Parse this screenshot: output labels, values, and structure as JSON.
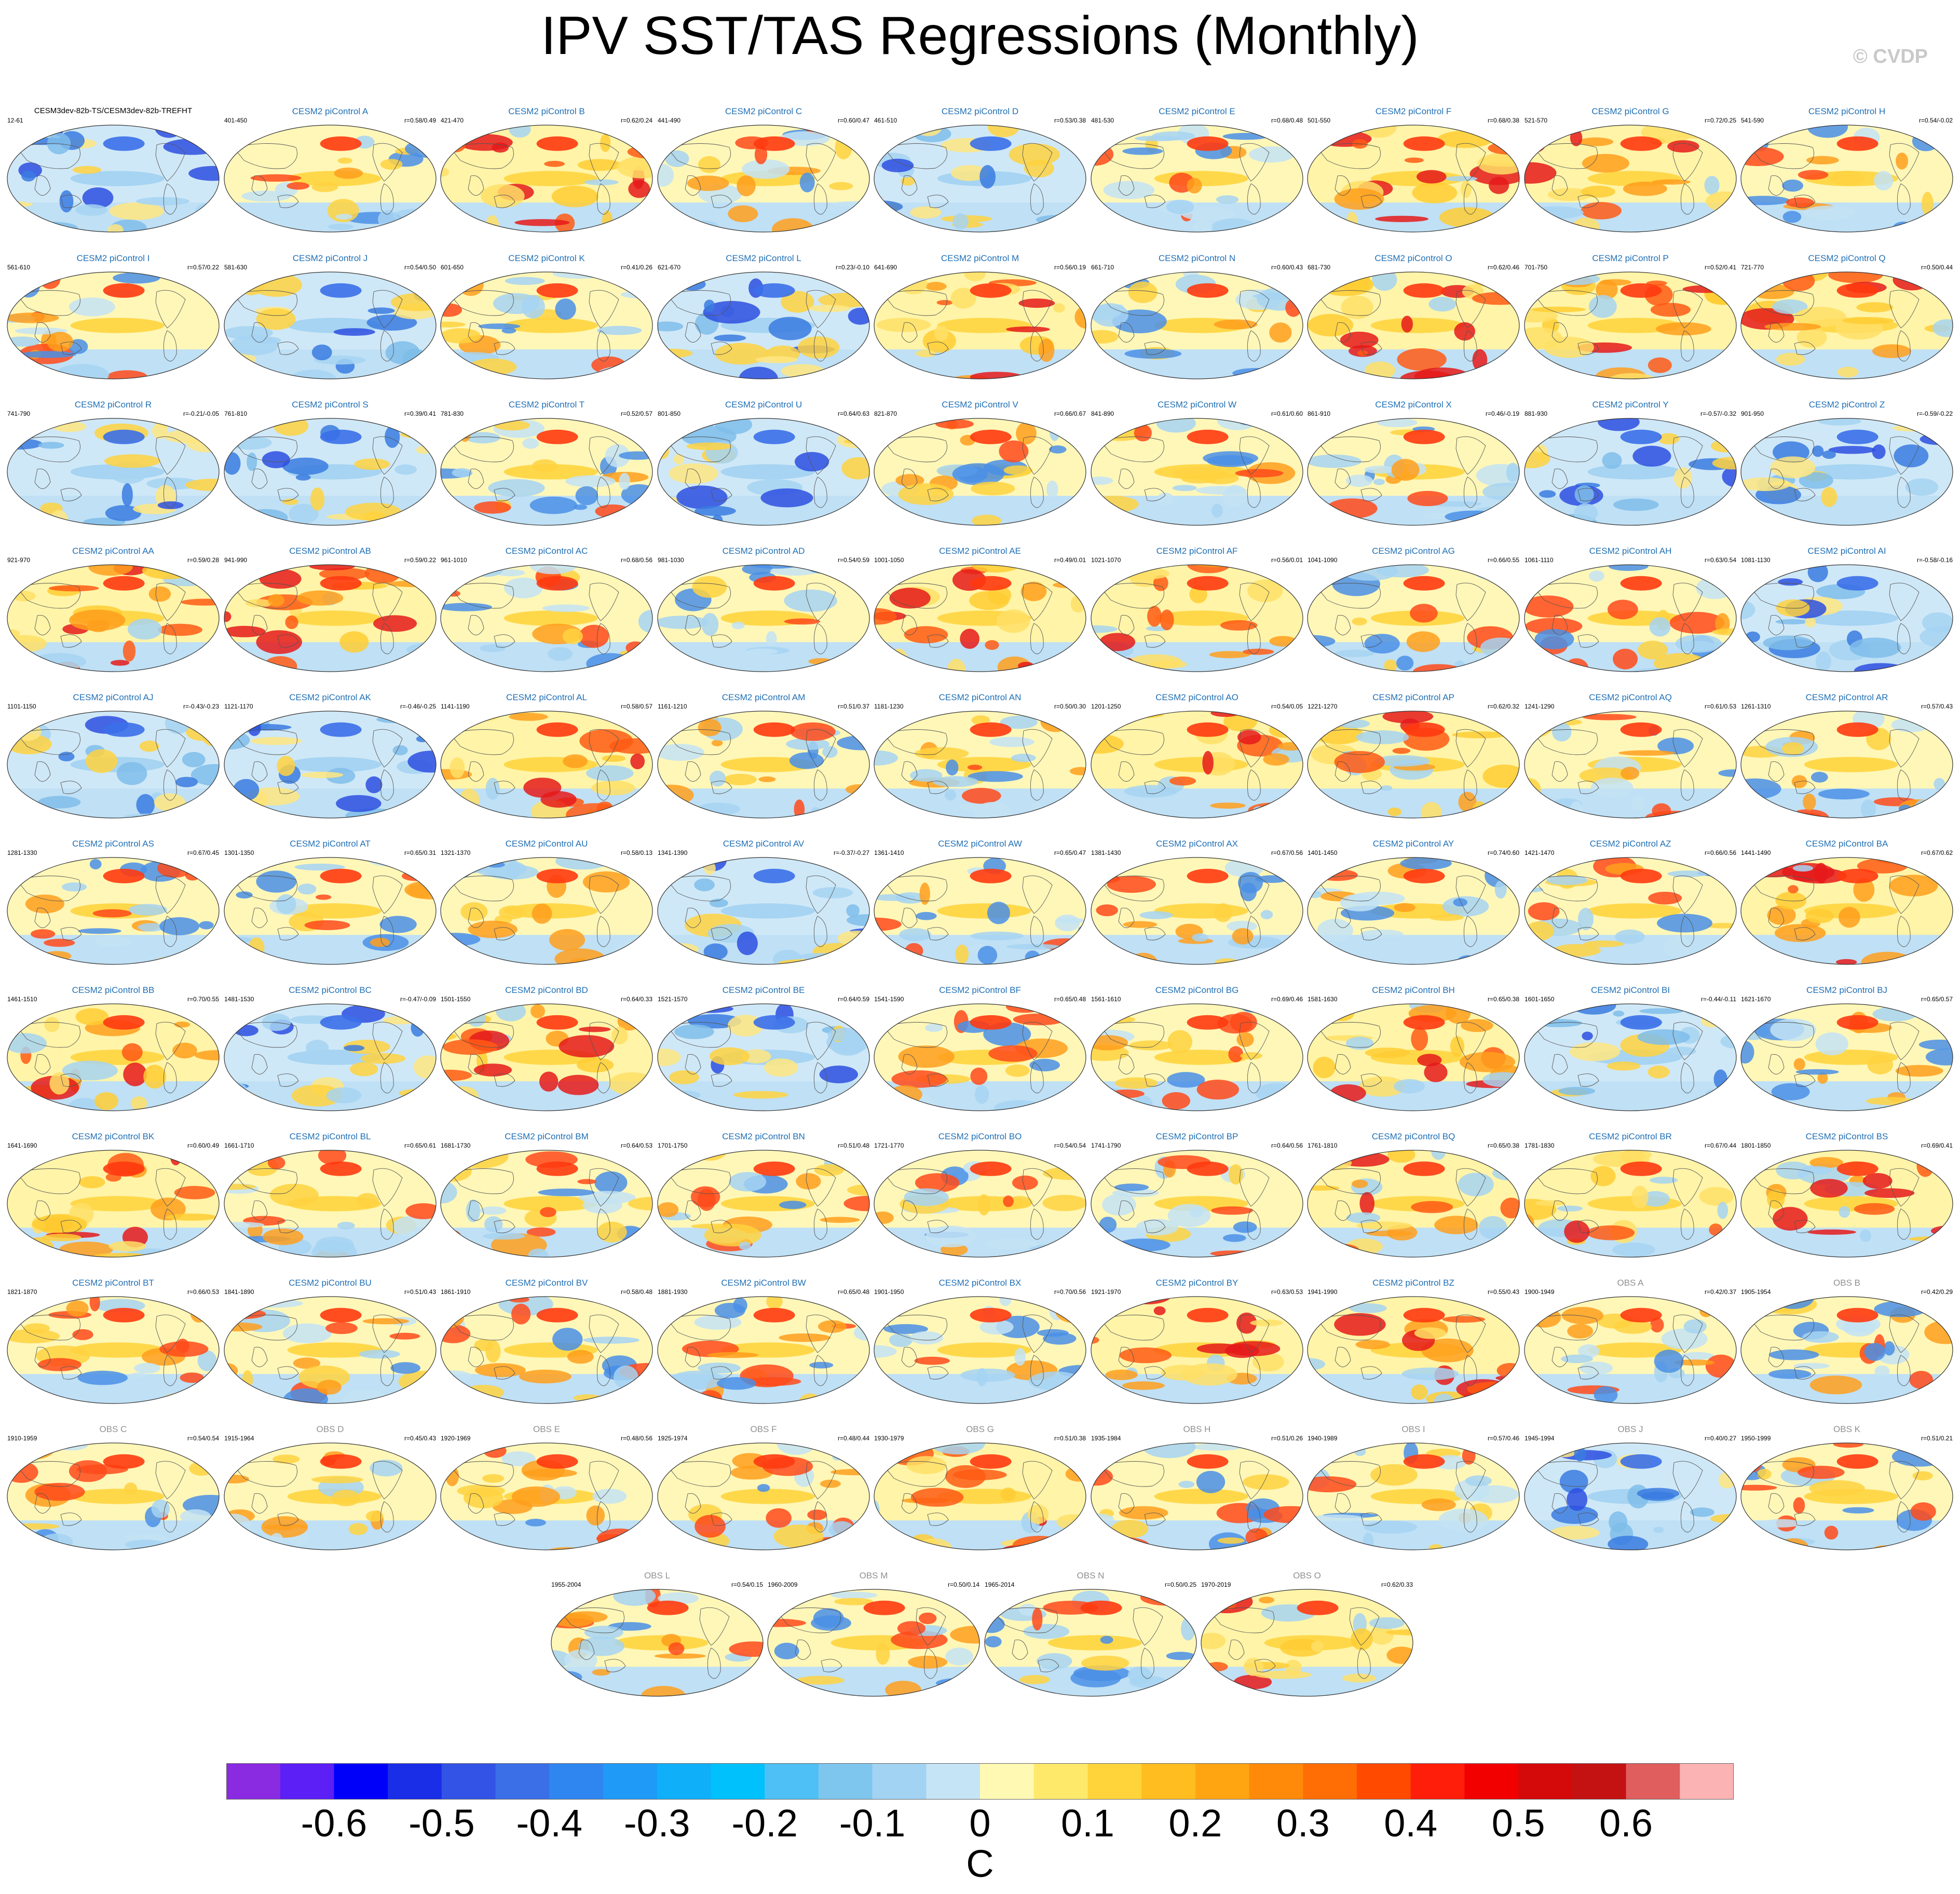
{
  "title": "IPV SST/TAS Regressions (Monthly)",
  "watermark": "© CVDP",
  "first_panel": {
    "subtitle": "CESM3dev-82b-TS/CESM3dev-82b-TREFHT",
    "period": "12-61",
    "corr": "",
    "palette": "cold"
  },
  "model_panels": [
    {
      "t": "CESM2 piControl A",
      "p": "401-450",
      "r": "r=0.58/0.49",
      "w": "mixed"
    },
    {
      "t": "CESM2 piControl B",
      "p": "421-470",
      "r": "r=0.62/0.24",
      "w": "warm"
    },
    {
      "t": "CESM2 piControl C",
      "p": "441-490",
      "r": "r=0.60/0.47",
      "w": "mixed"
    },
    {
      "t": "CESM2 piControl D",
      "p": "461-510",
      "r": "r=0.53/0.38",
      "w": "cold"
    },
    {
      "t": "CESM2 piControl E",
      "p": "481-530",
      "r": "r=0.68/0.48",
      "w": "mixed"
    },
    {
      "t": "CESM2 piControl F",
      "p": "501-550",
      "r": "r=0.68/0.38",
      "w": "warm"
    },
    {
      "t": "CESM2 piControl G",
      "p": "521-570",
      "r": "r=0.72/0.25",
      "w": "warm"
    },
    {
      "t": "CESM2 piControl H",
      "p": "541-590",
      "r": "r=0.54/-0.02",
      "w": "mixed"
    },
    {
      "t": "CESM2 piControl I",
      "p": "561-610",
      "r": "r=0.57/0.22",
      "w": "mixed"
    },
    {
      "t": "CESM2 piControl J",
      "p": "581-630",
      "r": "r=0.54/0.50",
      "w": "cold"
    },
    {
      "t": "CESM2 piControl K",
      "p": "601-650",
      "r": "r=0.41/0.26",
      "w": "mixed"
    },
    {
      "t": "CESM2 piControl L",
      "p": "621-670",
      "r": "r=0.23/-0.10",
      "w": "cold"
    },
    {
      "t": "CESM2 piControl M",
      "p": "641-690",
      "r": "r=0.56/0.19",
      "w": "warm"
    },
    {
      "t": "CESM2 piControl N",
      "p": "661-710",
      "r": "r=0.60/0.43",
      "w": "mixed"
    },
    {
      "t": "CESM2 piControl O",
      "p": "681-730",
      "r": "r=0.62/0.46",
      "w": "warm"
    },
    {
      "t": "CESM2 piControl P",
      "p": "701-750",
      "r": "r=0.52/0.41",
      "w": "warm"
    },
    {
      "t": "CESM2 piControl Q",
      "p": "721-770",
      "r": "r=0.50/0.44",
      "w": "warm"
    },
    {
      "t": "CESM2 piControl R",
      "p": "741-790",
      "r": "r=-0.21/-0.05",
      "w": "cold"
    },
    {
      "t": "CESM2 piControl S",
      "p": "761-810",
      "r": "r=0.39/0.41",
      "w": "cold"
    },
    {
      "t": "CESM2 piControl T",
      "p": "781-830",
      "r": "r=0.52/0.57",
      "w": "mixed"
    },
    {
      "t": "CESM2 piControl U",
      "p": "801-850",
      "r": "r=0.64/0.63",
      "w": "cold"
    },
    {
      "t": "CESM2 piControl V",
      "p": "821-870",
      "r": "r=0.66/0.67",
      "w": "mixed"
    },
    {
      "t": "CESM2 piControl W",
      "p": "841-890",
      "r": "r=0.61/0.60",
      "w": "mixed"
    },
    {
      "t": "CESM2 piControl X",
      "p": "861-910",
      "r": "r=0.46/-0.19",
      "w": "mixed"
    },
    {
      "t": "CESM2 piControl Y",
      "p": "881-930",
      "r": "r=-0.57/-0.32",
      "w": "cold"
    },
    {
      "t": "CESM2 piControl Z",
      "p": "901-950",
      "r": "r=-0.59/-0.22",
      "w": "cold"
    },
    {
      "t": "CESM2 piControl AA",
      "p": "921-970",
      "r": "r=0.59/0.28",
      "w": "warm"
    },
    {
      "t": "CESM2 piControl AB",
      "p": "941-990",
      "r": "r=0.59/0.22",
      "w": "warm"
    },
    {
      "t": "CESM2 piControl AC",
      "p": "961-1010",
      "r": "r=0.68/0.56",
      "w": "mixed"
    },
    {
      "t": "CESM2 piControl AD",
      "p": "981-1030",
      "r": "r=0.54/0.59",
      "w": "mixed"
    },
    {
      "t": "CESM2 piControl AE",
      "p": "1001-1050",
      "r": "r=0.49/0.01",
      "w": "warm"
    },
    {
      "t": "CESM2 piControl AF",
      "p": "1021-1070",
      "r": "r=0.56/0.01",
      "w": "warm"
    },
    {
      "t": "CESM2 piControl AG",
      "p": "1041-1090",
      "r": "r=0.66/0.55",
      "w": "mixed"
    },
    {
      "t": "CESM2 piControl AH",
      "p": "1061-1110",
      "r": "r=0.63/0.54",
      "w": "mixed"
    },
    {
      "t": "CESM2 piControl AI",
      "p": "1081-1130",
      "r": "r=-0.58/-0.16",
      "w": "cold"
    },
    {
      "t": "CESM2 piControl AJ",
      "p": "1101-1150",
      "r": "r=-0.43/-0.23",
      "w": "cold"
    },
    {
      "t": "CESM2 piControl AK",
      "p": "1121-1170",
      "r": "r=-0.46/-0.25",
      "w": "cold"
    },
    {
      "t": "CESM2 piControl AL",
      "p": "1141-1190",
      "r": "r=0.58/0.57",
      "w": "warm"
    },
    {
      "t": "CESM2 piControl AM",
      "p": "1161-1210",
      "r": "r=0.51/0.37",
      "w": "mixed"
    },
    {
      "t": "CESM2 piControl AN",
      "p": "1181-1230",
      "r": "r=0.50/0.30",
      "w": "mixed"
    },
    {
      "t": "CESM2 piControl AO",
      "p": "1201-1250",
      "r": "r=0.54/0.05",
      "w": "warm"
    },
    {
      "t": "CESM2 piControl AP",
      "p": "1221-1270",
      "r": "r=0.62/0.32",
      "w": "warm"
    },
    {
      "t": "CESM2 piControl AQ",
      "p": "1241-1290",
      "r": "r=0.61/0.53",
      "w": "mixed"
    },
    {
      "t": "CESM2 piControl AR",
      "p": "1261-1310",
      "r": "r=0.57/0.43",
      "w": "mixed"
    },
    {
      "t": "CESM2 piControl AS",
      "p": "1281-1330",
      "r": "r=0.67/0.45",
      "w": "mixed"
    },
    {
      "t": "CESM2 piControl AT",
      "p": "1301-1350",
      "r": "r=0.65/0.31",
      "w": "mixed"
    },
    {
      "t": "CESM2 piControl AU",
      "p": "1321-1370",
      "r": "r=0.58/0.13",
      "w": "mixed"
    },
    {
      "t": "CESM2 piControl AV",
      "p": "1341-1390",
      "r": "r=-0.37/-0.27",
      "w": "cold"
    },
    {
      "t": "CESM2 piControl AW",
      "p": "1361-1410",
      "r": "r=0.65/0.47",
      "w": "mixed"
    },
    {
      "t": "CESM2 piControl AX",
      "p": "1381-1430",
      "r": "r=0.67/0.56",
      "w": "mixed"
    },
    {
      "t": "CESM2 piControl AY",
      "p": "1401-1450",
      "r": "r=0.74/0.60",
      "w": "mixed"
    },
    {
      "t": "CESM2 piControl AZ",
      "p": "1421-1470",
      "r": "r=0.66/0.56",
      "w": "mixed"
    },
    {
      "t": "CESM2 piControl BA",
      "p": "1441-1490",
      "r": "r=0.67/0.62",
      "w": "warm"
    },
    {
      "t": "CESM2 piControl BB",
      "p": "1461-1510",
      "r": "r=0.70/0.55",
      "w": "warm"
    },
    {
      "t": "CESM2 piControl BC",
      "p": "1481-1530",
      "r": "r=-0.47/-0.09",
      "w": "cold"
    },
    {
      "t": "CESM2 piControl BD",
      "p": "1501-1550",
      "r": "r=0.64/0.33",
      "w": "warm"
    },
    {
      "t": "CESM2 piControl BE",
      "p": "1521-1570",
      "r": "r=0.64/0.59",
      "w": "cold"
    },
    {
      "t": "CESM2 piControl BF",
      "p": "1541-1590",
      "r": "r=0.65/0.48",
      "w": "mixed"
    },
    {
      "t": "CESM2 piControl BG",
      "p": "1561-1610",
      "r": "r=0.69/0.46",
      "w": "mixed"
    },
    {
      "t": "CESM2 piControl BH",
      "p": "1581-1630",
      "r": "r=0.65/0.38",
      "w": "warm"
    },
    {
      "t": "CESM2 piControl BI",
      "p": "1601-1650",
      "r": "r=-0.44/-0.11",
      "w": "cold"
    },
    {
      "t": "CESM2 piControl BJ",
      "p": "1621-1670",
      "r": "r=0.65/0.57",
      "w": "mixed"
    },
    {
      "t": "CESM2 piControl BK",
      "p": "1641-1690",
      "r": "r=0.60/0.49",
      "w": "warm"
    },
    {
      "t": "CESM2 piControl BL",
      "p": "1661-1710",
      "r": "r=0.65/0.61",
      "w": "mixed"
    },
    {
      "t": "CESM2 piControl BM",
      "p": "1681-1730",
      "r": "r=0.64/0.53",
      "w": "mixed"
    },
    {
      "t": "CESM2 piControl BN",
      "p": "1701-1750",
      "r": "r=0.51/0.48",
      "w": "mixed"
    },
    {
      "t": "CESM2 piControl BO",
      "p": "1721-1770",
      "r": "r=0.54/0.54",
      "w": "mixed"
    },
    {
      "t": "CESM2 piControl BP",
      "p": "1741-1790",
      "r": "r=0.64/0.56",
      "w": "mixed"
    },
    {
      "t": "CESM2 piControl BQ",
      "p": "1761-1810",
      "r": "r=0.65/0.38",
      "w": "warm"
    },
    {
      "t": "CESM2 piControl BR",
      "p": "1781-1830",
      "r": "r=0.67/0.44",
      "w": "warm"
    },
    {
      "t": "CESM2 piControl BS",
      "p": "1801-1850",
      "r": "r=0.69/0.41",
      "w": "warm"
    },
    {
      "t": "CESM2 piControl BT",
      "p": "1821-1870",
      "r": "r=0.66/0.53",
      "w": "mixed"
    },
    {
      "t": "CESM2 piControl BU",
      "p": "1841-1890",
      "r": "r=0.51/0.43",
      "w": "mixed"
    },
    {
      "t": "CESM2 piControl BV",
      "p": "1861-1910",
      "r": "r=0.58/0.48",
      "w": "mixed"
    },
    {
      "t": "CESM2 piControl BW",
      "p": "1881-1930",
      "r": "r=0.65/0.48",
      "w": "mixed"
    },
    {
      "t": "CESM2 piControl BX",
      "p": "1901-1950",
      "r": "r=0.70/0.56",
      "w": "mixed"
    },
    {
      "t": "CESM2 piControl BY",
      "p": "1921-1970",
      "r": "r=0.63/0.53",
      "w": "warm"
    },
    {
      "t": "CESM2 piControl BZ",
      "p": "1941-1990",
      "r": "r=0.55/0.43",
      "w": "warm"
    }
  ],
  "obs_panels": [
    {
      "t": "OBS A",
      "p": "1900-1949",
      "r": "r=0.42/0.37",
      "w": "mixed"
    },
    {
      "t": "OBS B",
      "p": "1905-1954",
      "r": "r=0.42/0.29",
      "w": "mixed"
    },
    {
      "t": "OBS C",
      "p": "1910-1959",
      "r": "r=0.54/0.54",
      "w": "mixed"
    },
    {
      "t": "OBS D",
      "p": "1915-1964",
      "r": "r=0.45/0.43",
      "w": "mixed"
    },
    {
      "t": "OBS E",
      "p": "1920-1969",
      "r": "r=0.48/0.56",
      "w": "mixed"
    },
    {
      "t": "OBS F",
      "p": "1925-1974",
      "r": "r=0.48/0.44",
      "w": "mixed"
    },
    {
      "t": "OBS G",
      "p": "1930-1979",
      "r": "r=0.51/0.38",
      "w": "warm"
    },
    {
      "t": "OBS H",
      "p": "1935-1984",
      "r": "r=0.51/0.26",
      "w": "mixed"
    },
    {
      "t": "OBS I",
      "p": "1940-1989",
      "r": "r=0.57/0.46",
      "w": "mixed"
    },
    {
      "t": "OBS J",
      "p": "1945-1994",
      "r": "r=0.40/0.27",
      "w": "cold"
    },
    {
      "t": "OBS K",
      "p": "1950-1999",
      "r": "r=0.51/0.21",
      "w": "mixed"
    },
    {
      "t": "OBS L",
      "p": "1955-2004",
      "r": "r=0.54/0.15",
      "w": "mixed"
    },
    {
      "t": "OBS M",
      "p": "1960-2009",
      "r": "r=0.50/0.14",
      "w": "mixed"
    },
    {
      "t": "OBS N",
      "p": "1965-2014",
      "r": "r=0.50/0.25",
      "w": "mixed"
    },
    {
      "t": "OBS O",
      "p": "1970-2019",
      "r": "r=0.62/0.33",
      "w": "warm"
    }
  ],
  "colorbar": {
    "colors": [
      "#8a2be2",
      "#5c1ff5",
      "#0000fa",
      "#1a2ee8",
      "#3353e6",
      "#3a6fe8",
      "#2f86f0",
      "#1f9af7",
      "#10aff9",
      "#00c1fc",
      "#4ec0f5",
      "#7ec6ee",
      "#a3d3f2",
      "#c5e4f6",
      "#fff9b3",
      "#ffe96b",
      "#ffd43b",
      "#ffbd1f",
      "#ffa512",
      "#ff8a0a",
      "#ff6d05",
      "#ff4a00",
      "#ff1e0a",
      "#f20000",
      "#d40a0a",
      "#c41212",
      "#e05e5e",
      "#fbb3b3"
    ],
    "tick_labels": [
      "-0.6",
      "-0.5",
      "-0.4",
      "-0.3",
      "-0.2",
      "-0.1",
      "0",
      "0.1",
      "0.2",
      "0.3",
      "0.4",
      "0.5",
      "0.6"
    ],
    "tick_values": [
      -0.6,
      -0.5,
      -0.4,
      -0.3,
      -0.2,
      -0.1,
      0,
      0.1,
      0.2,
      0.3,
      0.4,
      0.5,
      0.6
    ],
    "range": [
      -0.7,
      0.7
    ],
    "unit": "C"
  }
}
